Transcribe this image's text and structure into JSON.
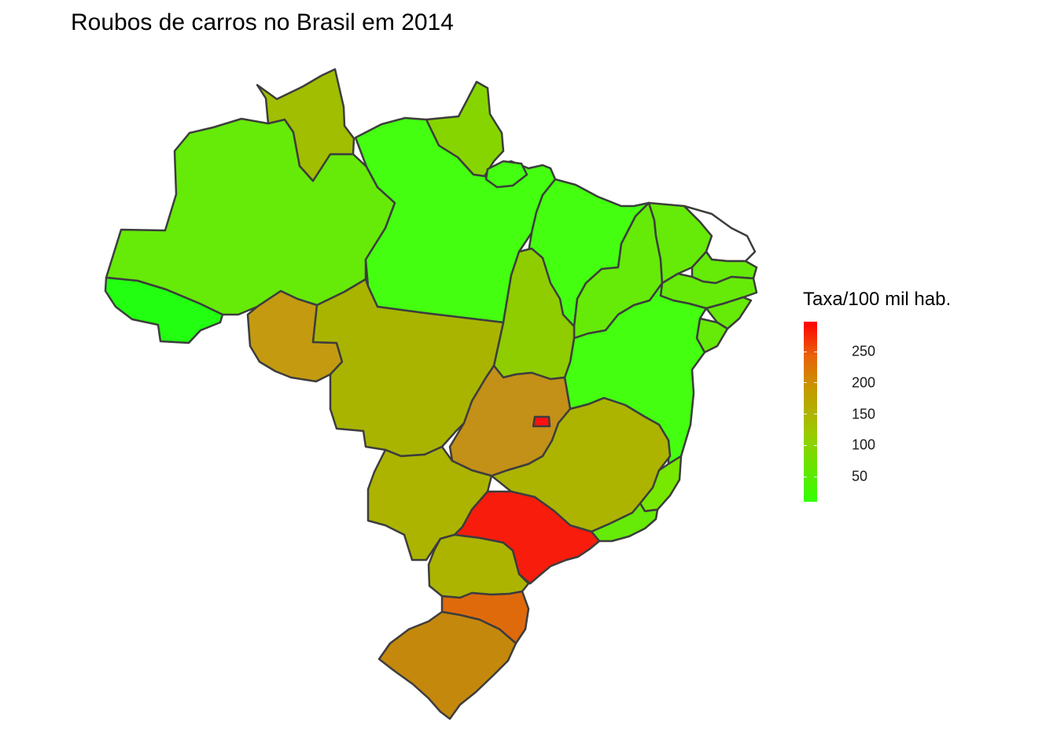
{
  "title": "Roubos de carros no Brasil em 2014",
  "legend": {
    "title": "Taxa/100 mil hab.",
    "scale_min": 10,
    "scale_max": 298,
    "low_color": "#33ff00",
    "high_color": "#ff0000",
    "ticks": [
      {
        "value": 50,
        "label": "50"
      },
      {
        "value": 100,
        "label": "100"
      },
      {
        "value": 150,
        "label": "150"
      },
      {
        "value": 200,
        "label": "200"
      },
      {
        "value": 250,
        "label": "250"
      }
    ]
  },
  "states": [
    {
      "id": "AC",
      "fill": "#22ff10"
    },
    {
      "id": "AM",
      "fill": "#66ea08"
    },
    {
      "id": "RR",
      "fill": "#a2be00"
    },
    {
      "id": "AP",
      "fill": "#87d500"
    },
    {
      "id": "PA",
      "fill": "#44ff10"
    },
    {
      "id": "MA",
      "fill": "#44ff10"
    },
    {
      "id": "PI",
      "fill": "#66ea08"
    },
    {
      "id": "CE",
      "fill": "#66ea08"
    },
    {
      "id": "RN",
      "fill": "#ffffff"
    },
    {
      "id": "PB",
      "fill": "#66ea08"
    },
    {
      "id": "PE",
      "fill": "#66ea08"
    },
    {
      "id": "AL",
      "fill": "#66ea08"
    },
    {
      "id": "SE",
      "fill": "#66ea08"
    },
    {
      "id": "BA",
      "fill": "#44ff10"
    },
    {
      "id": "TO",
      "fill": "#8fcc00"
    },
    {
      "id": "RO",
      "fill": "#c49a10"
    },
    {
      "id": "MT",
      "fill": "#a9b400"
    },
    {
      "id": "GO",
      "fill": "#c39018"
    },
    {
      "id": "DF",
      "fill": "#ff1010"
    },
    {
      "id": "MS",
      "fill": "#acb400"
    },
    {
      "id": "MG",
      "fill": "#acb400"
    },
    {
      "id": "ES",
      "fill": "#77e800"
    },
    {
      "id": "RJ",
      "fill": "#66ea08"
    },
    {
      "id": "SP",
      "fill": "#f81c0c"
    },
    {
      "id": "PR",
      "fill": "#acb400"
    },
    {
      "id": "SC",
      "fill": "#df6a0c"
    },
    {
      "id": "RS",
      "fill": "#c4880c"
    }
  ]
}
